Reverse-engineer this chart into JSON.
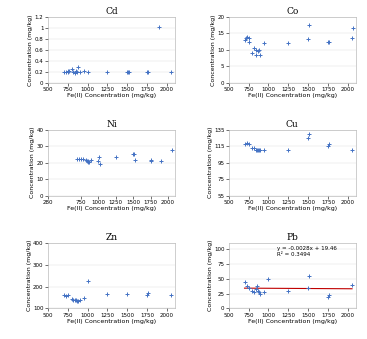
{
  "plots": [
    {
      "title": "Cd",
      "xlabel": "Fe(II) Concentration (mg/kg)",
      "ylabel": "Concentration (mg/kg)",
      "xlim": [
        500,
        2100
      ],
      "ylim": [
        0.0,
        1.2
      ],
      "xticks": [
        500,
        750,
        1000,
        1250,
        1500,
        1750,
        2000
      ],
      "yticks": [
        0.0,
        0.2,
        0.4,
        0.6,
        0.8,
        1.0,
        1.2
      ],
      "x": [
        700,
        730,
        750,
        760,
        770,
        800,
        820,
        840,
        860,
        870,
        880,
        900,
        950,
        1000,
        1250,
        1500,
        1510,
        1520,
        1750,
        1760,
        1900,
        2050
      ],
      "y": [
        0.2,
        0.2,
        0.22,
        0.2,
        0.22,
        0.24,
        0.2,
        0.18,
        0.22,
        0.2,
        0.28,
        0.2,
        0.22,
        0.2,
        0.2,
        0.2,
        0.2,
        0.2,
        0.2,
        0.2,
        1.02,
        0.2
      ],
      "show_regression": false,
      "regression_text": null
    },
    {
      "title": "Co",
      "xlabel": "Fe(II) Concentration (mg/kg)",
      "ylabel": "Concentration (mg/kg)",
      "xlim": [
        500,
        2100
      ],
      "ylim": [
        0.0,
        20.0
      ],
      "xticks": [
        500,
        750,
        1000,
        1250,
        1500,
        1750,
        2000
      ],
      "yticks": [
        0.0,
        5.0,
        10.0,
        15.0,
        20.0
      ],
      "x": [
        700,
        720,
        730,
        750,
        760,
        800,
        820,
        840,
        850,
        870,
        880,
        900,
        950,
        1250,
        1500,
        1510,
        1750,
        1760,
        2050,
        2060
      ],
      "y": [
        13.0,
        13.5,
        14.0,
        13.5,
        12.5,
        9.0,
        10.5,
        10.0,
        8.5,
        9.5,
        10.0,
        8.5,
        12.0,
        12.0,
        13.2,
        17.5,
        12.5,
        12.5,
        13.5,
        16.5
      ],
      "show_regression": false,
      "regression_text": null
    },
    {
      "title": "Ni",
      "xlabel": "Fe(II) Concentration (mg/kg)",
      "ylabel": "Concentration (mg/kg)",
      "xlim": [
        280,
        2100
      ],
      "ylim": [
        0.0,
        40.0
      ],
      "xticks": [
        280,
        750,
        1000,
        1250,
        1500,
        1750,
        2000
      ],
      "yticks": [
        0.0,
        10.0,
        20.0,
        30.0,
        40.0
      ],
      "x": [
        700,
        730,
        760,
        780,
        820,
        840,
        850,
        860,
        870,
        900,
        1000,
        1010,
        1020,
        1250,
        1500,
        1510,
        1520,
        1750,
        1760,
        1900,
        2050
      ],
      "y": [
        22.5,
        22.5,
        22.0,
        22.5,
        21.5,
        21.0,
        20.5,
        21.0,
        20.5,
        21.5,
        21.0,
        23.5,
        19.5,
        23.5,
        25.5,
        25.5,
        21.5,
        21.5,
        21.0,
        21.0,
        28.0
      ],
      "show_regression": false,
      "regression_text": null
    },
    {
      "title": "Cu",
      "xlabel": "Fe(II) Concentration (mg/kg)",
      "ylabel": "Concentration (mg/kg)",
      "xlim": [
        500,
        2100
      ],
      "ylim": [
        55.0,
        135.0
      ],
      "xticks": [
        500,
        750,
        1000,
        1250,
        1500,
        1750,
        2000
      ],
      "yticks": [
        55.0,
        75.0,
        95.0,
        115.0,
        135.0
      ],
      "x": [
        700,
        730,
        760,
        800,
        820,
        840,
        860,
        870,
        880,
        900,
        950,
        1250,
        1500,
        1510,
        1750,
        1760,
        2050
      ],
      "y": [
        118.0,
        118.5,
        118.0,
        113.0,
        113.0,
        110.0,
        111.0,
        110.0,
        110.0,
        110.0,
        110.0,
        110.0,
        125.0,
        130.0,
        115.0,
        118.0,
        110.0
      ],
      "show_regression": false,
      "regression_text": null
    },
    {
      "title": "Zn",
      "xlabel": "Fe(II) Concentration (mg/kg)",
      "ylabel": "Concentration (mg/kg)",
      "xlim": [
        500,
        2100
      ],
      "ylim": [
        100.0,
        400.0
      ],
      "xticks": [
        500,
        750,
        1000,
        1250,
        1500,
        1750,
        2000
      ],
      "yticks": [
        100.0,
        200.0,
        300.0,
        400.0
      ],
      "x": [
        700,
        730,
        760,
        800,
        820,
        840,
        860,
        870,
        880,
        900,
        950,
        1000,
        1250,
        1500,
        1750,
        1760,
        2050
      ],
      "y": [
        160.0,
        155.0,
        160.0,
        145.0,
        140.0,
        140.0,
        140.0,
        135.0,
        135.0,
        140.0,
        150.0,
        225.0,
        165.0,
        165.0,
        160.0,
        170.0,
        160.0
      ],
      "show_regression": false,
      "regression_text": null
    },
    {
      "title": "Pb",
      "xlabel": "Fe(II) Concentration (mg/kg)",
      "ylabel": "Concentration (mg/kg)",
      "xlim": [
        500,
        2100
      ],
      "ylim": [
        0.0,
        110.0
      ],
      "xticks": [
        500,
        750,
        1000,
        1250,
        1500,
        1750,
        2000
      ],
      "yticks": [
        0.0,
        25.0,
        50.0,
        75.0,
        100.0
      ],
      "x": [
        700,
        730,
        760,
        800,
        820,
        840,
        860,
        870,
        880,
        900,
        950,
        1000,
        1250,
        1500,
        1510,
        1750,
        1760,
        2050
      ],
      "y": [
        45.0,
        38.0,
        35.0,
        30.0,
        28.0,
        32.0,
        38.0,
        30.0,
        27.0,
        25.0,
        27.0,
        50.0,
        30.0,
        35.0,
        55.0,
        20.0,
        23.0,
        40.0
      ],
      "show_regression": true,
      "regression_text": "y = -0.0028x + 19.46\nR² = 0.3494"
    }
  ],
  "marker_color": "#4472c4",
  "marker_size": 6,
  "marker_style": "+",
  "marker_linewidth": 0.7,
  "title_fontsize": 6.5,
  "label_fontsize": 4.5,
  "tick_fontsize": 4.0,
  "regression_line_color": "#c00000",
  "annotation_fontsize": 4.0,
  "grid_color": "#d9d9d9",
  "spine_color": "#aaaaaa"
}
